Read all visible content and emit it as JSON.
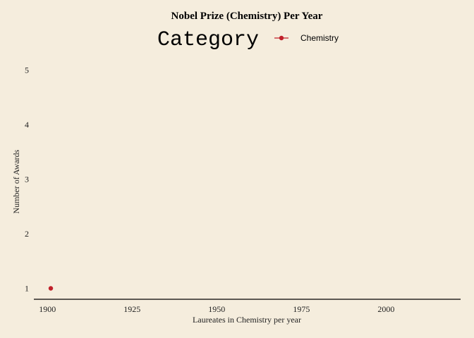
{
  "chart_data": {
    "type": "scatter",
    "title": "Nobel Prize (Chemistry) Per Year",
    "xlabel": "Laureates in Chemistry per year",
    "ylabel": "Number of Awards",
    "legend": {
      "title": "Category",
      "placement": "top",
      "entries": [
        "Chemistry"
      ]
    },
    "xlim": [
      1896,
      2022
    ],
    "ylim": [
      0.8,
      5.2
    ],
    "xticks": [
      1900,
      1925,
      1950,
      1975,
      2000
    ],
    "yticks": [
      1,
      2,
      3,
      4,
      5
    ],
    "grid": false,
    "series": [
      {
        "name": "Chemistry",
        "color": "#C0202A",
        "x": [
          1901
        ],
        "y": [
          1
        ]
      }
    ]
  }
}
